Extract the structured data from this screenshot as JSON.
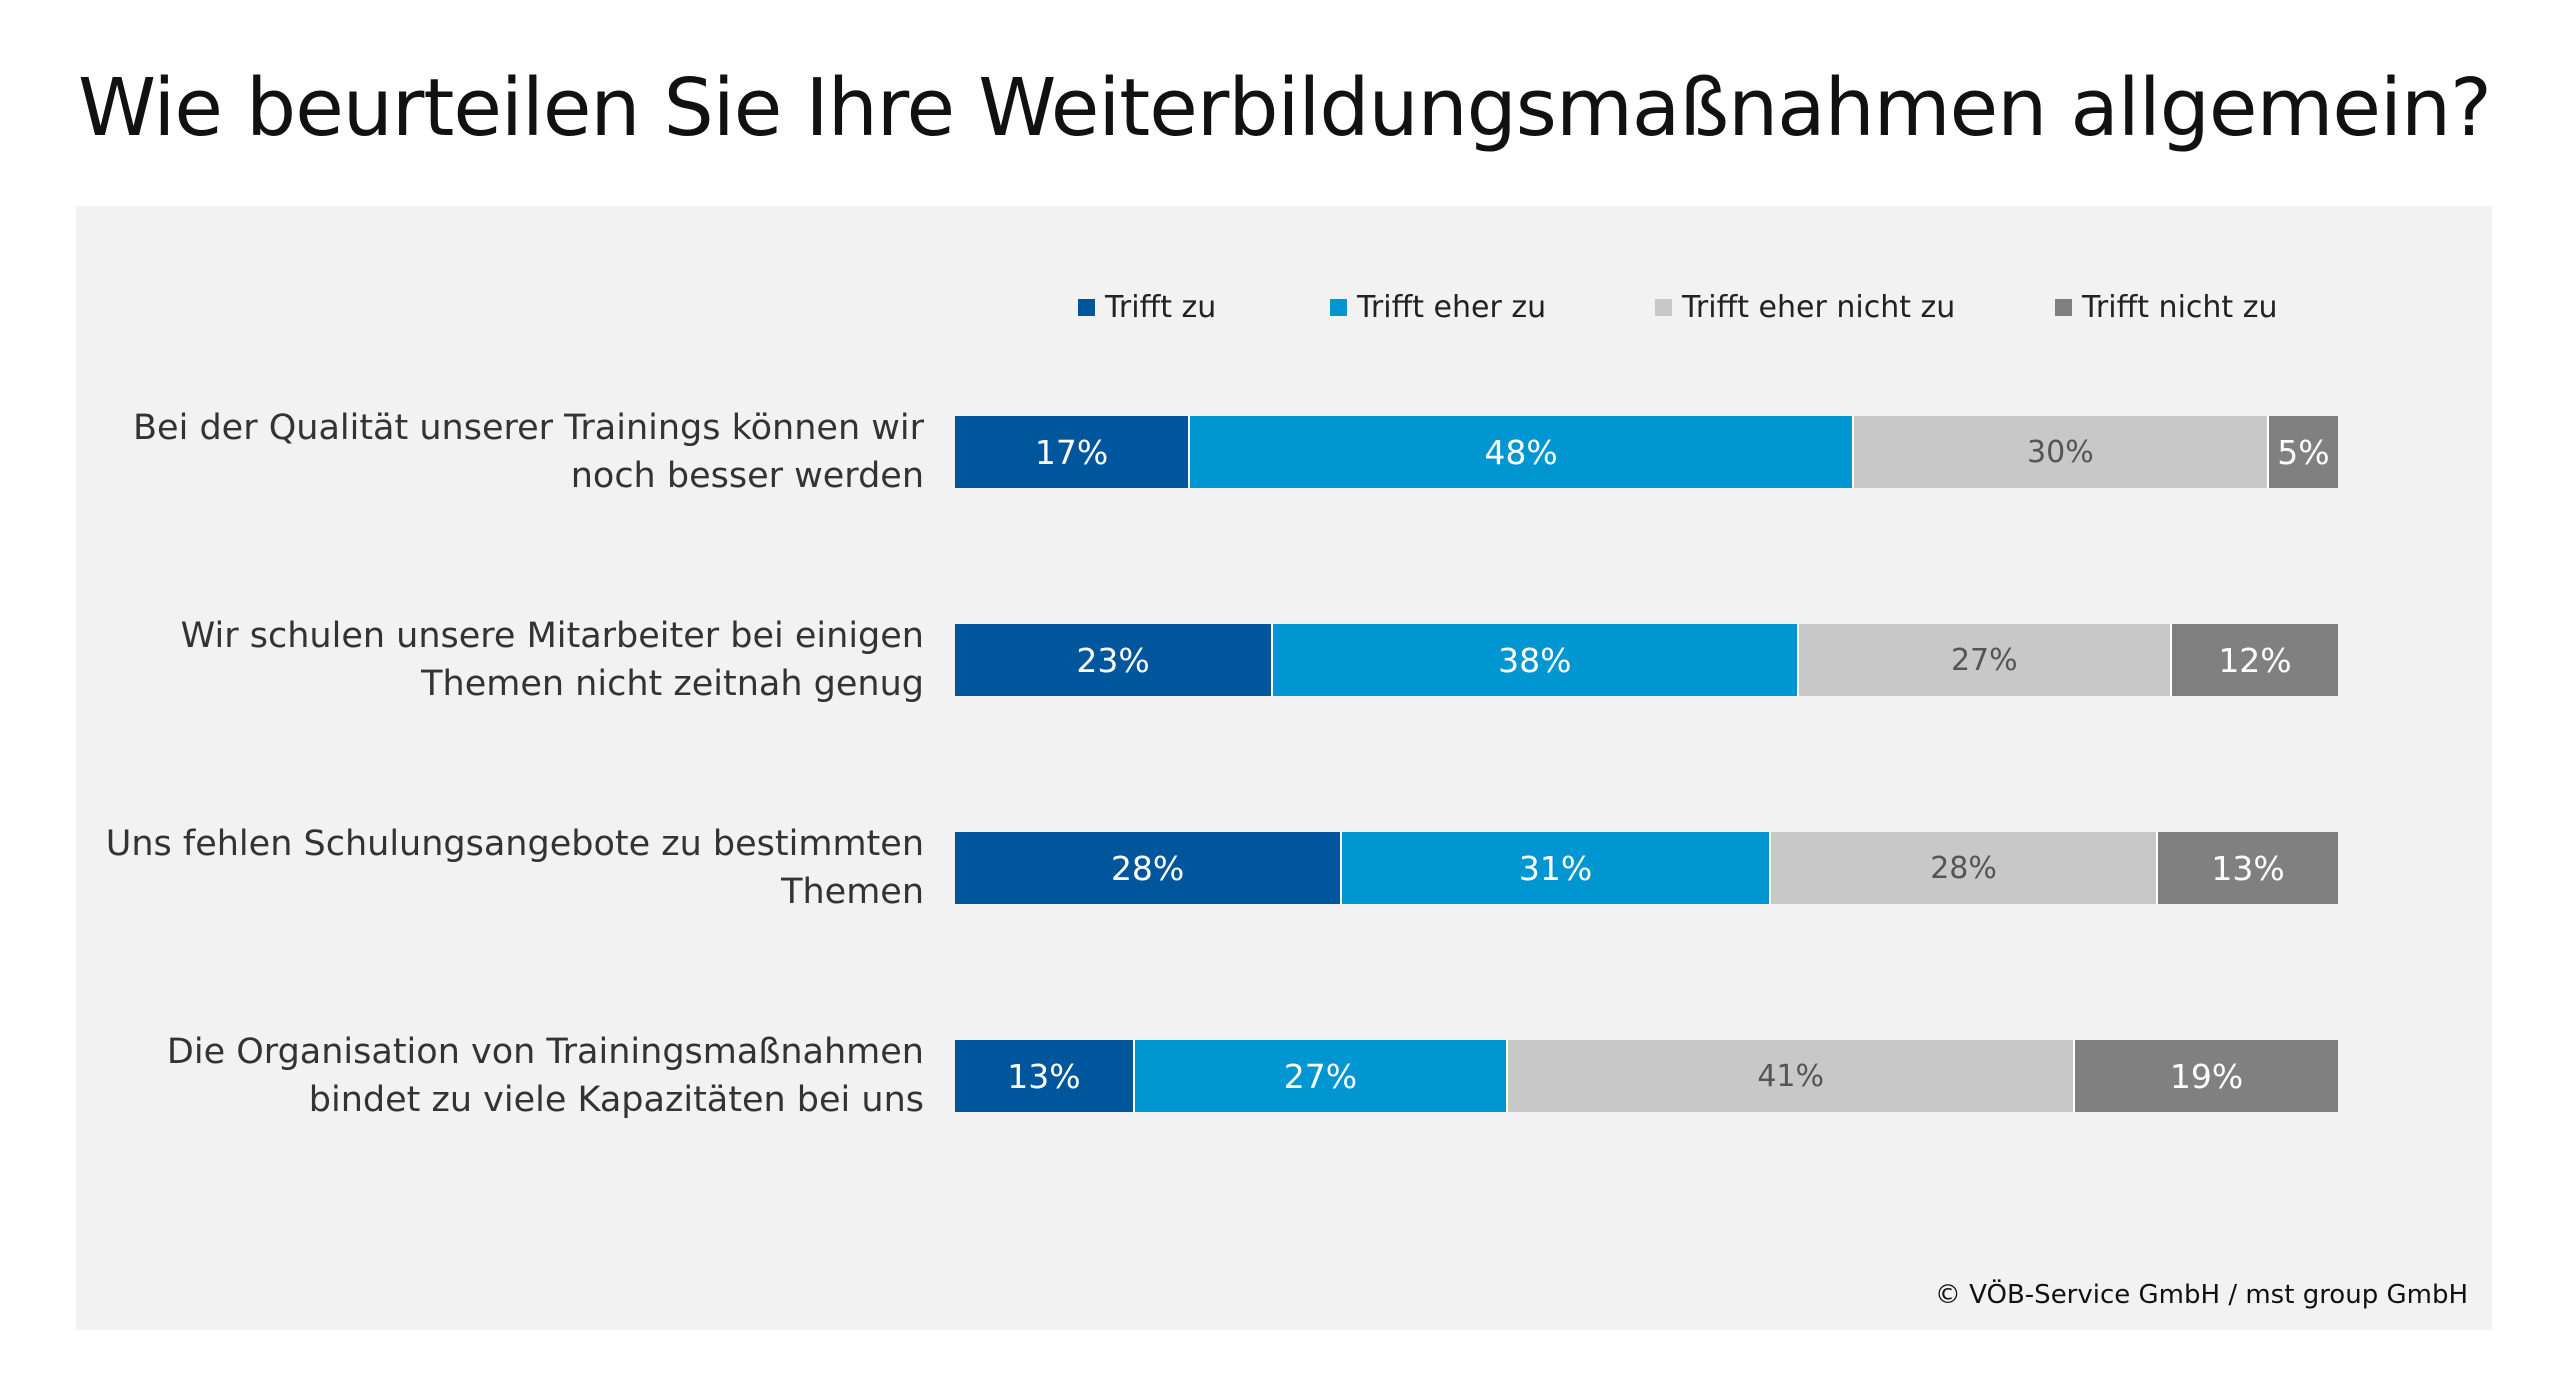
{
  "title": "Wie beurteilen Sie Ihre Weiterbildungsmaßnahmen allgemein?",
  "copyright": "© VÖB-Service GmbH / mst group GmbH",
  "chart_data": {
    "type": "bar",
    "orientation": "horizontal",
    "stacked": true,
    "unit": "%",
    "legend_position": "top",
    "grid": false,
    "categories": [
      "Bei der Qualität unserer Trainings können wir noch besser werden",
      "Wir schulen unsere Mitarbeiter bei einigen Themen nicht zeitnah genug",
      "Uns fehlen Schulungsangebote zu bestimmten Themen",
      "Die Organisation von Trainingsmaßnahmen bindet zu viele Kapazitäten bei uns"
    ],
    "category_lines": [
      [
        "Bei der Qualität unserer Trainings können wir",
        "noch besser werden"
      ],
      [
        "Wir schulen unsere Mitarbeiter bei einigen",
        "Themen nicht zeitnah genug"
      ],
      [
        "Uns fehlen Schulungsangebote zu bestimmten",
        "Themen"
      ],
      [
        "Die Organisation von Trainingsmaßnahmen",
        "bindet zu viele Kapazitäten bei uns"
      ]
    ],
    "series": [
      {
        "name": "Trifft zu",
        "color": "#00569c",
        "label_color": "#ffffff",
        "values": [
          17,
          23,
          28,
          13
        ]
      },
      {
        "name": "Trifft eher zu",
        "color": "#0096d1",
        "label_color": "#ffffff",
        "values": [
          48,
          38,
          31,
          27
        ]
      },
      {
        "name": "Trifft eher nicht zu",
        "color": "#c8c8c8",
        "label_color": "#555555",
        "values": [
          30,
          27,
          28,
          41
        ]
      },
      {
        "name": "Trifft nicht zu",
        "color": "#808080",
        "label_color": "#ffffff",
        "values": [
          5,
          12,
          13,
          19
        ]
      }
    ]
  }
}
